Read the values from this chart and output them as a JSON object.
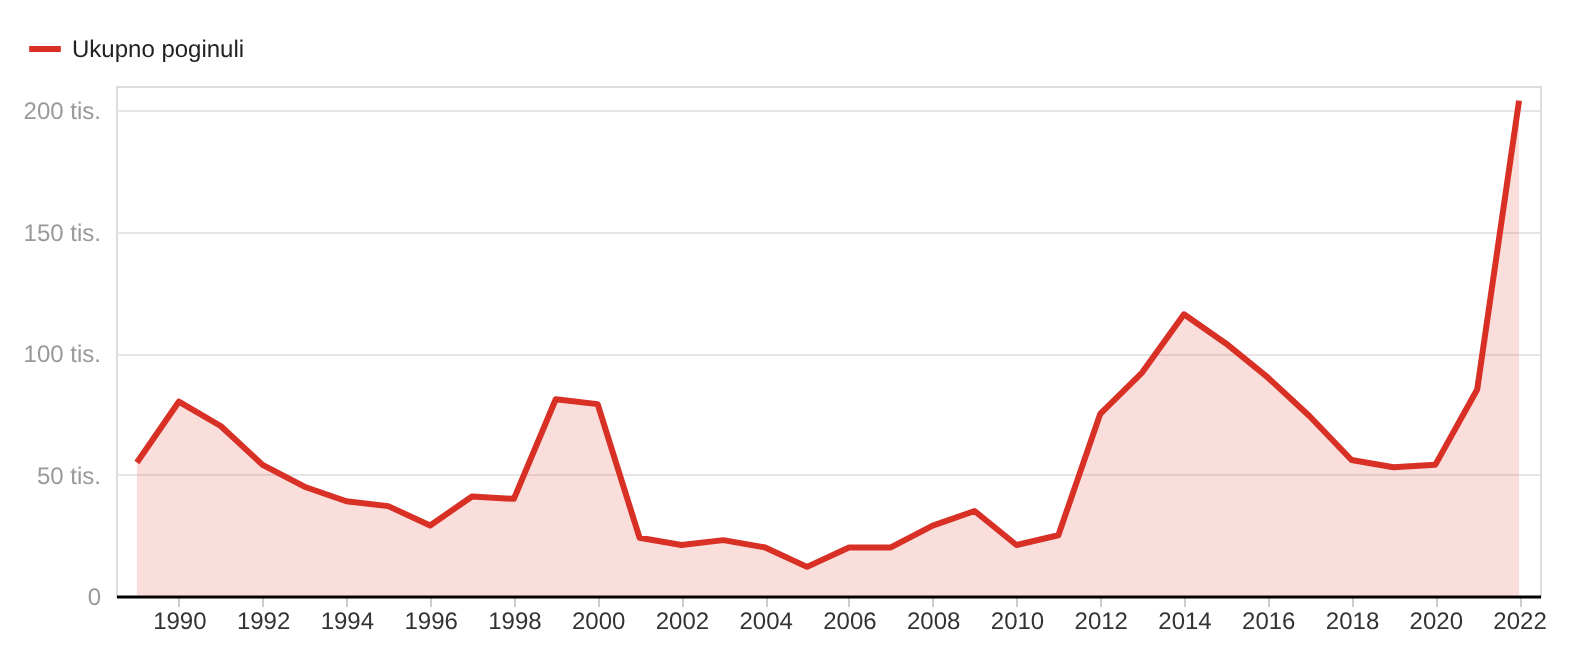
{
  "chart_data": {
    "type": "area",
    "x": [
      1989,
      1990,
      1991,
      1992,
      1993,
      1994,
      1995,
      1996,
      1997,
      1998,
      1999,
      2000,
      2001,
      2002,
      2003,
      2004,
      2005,
      2006,
      2007,
      2008,
      2009,
      2010,
      2011,
      2012,
      2013,
      2014,
      2015,
      2016,
      2017,
      2018,
      2019,
      2020,
      2021,
      2022
    ],
    "series": [
      {
        "name": "Ukupno poginuli",
        "color": "#d93025",
        "values": [
          55,
          80,
          70,
          54,
          45,
          39,
          37,
          29,
          41,
          40,
          81,
          79,
          24,
          21,
          23,
          20,
          12,
          20,
          20,
          29,
          35,
          21,
          25,
          75,
          92,
          116,
          104,
          90,
          74,
          56,
          53,
          54,
          85,
          204
        ]
      }
    ],
    "xlim": [
      1988.5,
      2022.5
    ],
    "xticks": [
      1990,
      1992,
      1994,
      1996,
      1998,
      2000,
      2002,
      2004,
      2006,
      2008,
      2010,
      2012,
      2014,
      2016,
      2018,
      2020,
      2022
    ],
    "ylim": [
      0,
      210
    ],
    "yticks": [
      0,
      {
        "value": 50,
        "label": "50 tis."
      },
      {
        "value": 100,
        "label": "100 tis."
      },
      {
        "value": 150,
        "label": "150 tis."
      },
      {
        "value": 200,
        "label": "200 tis."
      }
    ],
    "grid": "y",
    "legend": "top left",
    "line_style": "solid"
  }
}
